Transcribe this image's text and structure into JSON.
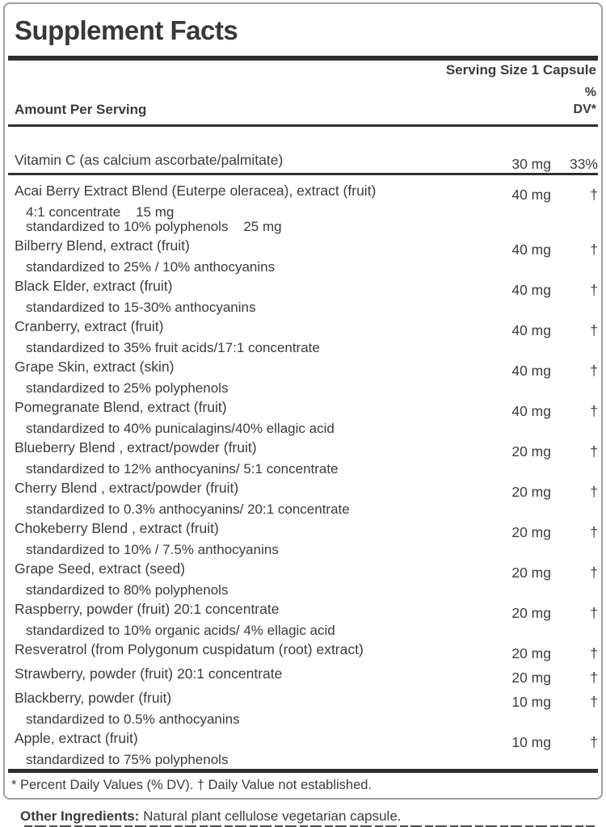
{
  "label": {
    "title": "Supplement Facts",
    "serving_size": "Serving Size 1 Capsule",
    "amount_header": "Amount Per Serving",
    "dv_header_line1": "%",
    "dv_header_line2": "DV*",
    "rows": [
      {
        "name": "Vitamin C (as calcium ascorbate/palmitate)",
        "amount": "30 mg",
        "dv": "33%",
        "subs": []
      },
      {
        "name": "Acai Berry Extract Blend (Euterpe oleracea), extract (fruit)",
        "amount": "40 mg",
        "dv": "†",
        "subs": [
          "4:1 concentrate    15 mg",
          "standardized to 10% polyphenols    25 mg"
        ]
      },
      {
        "name": "Bilberry Blend, extract (fruit)",
        "amount": "40 mg",
        "dv": "†",
        "subs": [
          "standardized to 25% / 10% anthocyanins"
        ]
      },
      {
        "name": "Black Elder, extract (fruit)",
        "amount": "40 mg",
        "dv": "†",
        "subs": [
          "standardized to 15-30% anthocyanins"
        ]
      },
      {
        "name": "Cranberry, extract (fruit)",
        "amount": "40 mg",
        "dv": "†",
        "subs": [
          "standardized to 35% fruit acids/17:1 concentrate"
        ]
      },
      {
        "name": "Grape Skin, extract (skin)",
        "amount": "40 mg",
        "dv": "†",
        "subs": [
          "standardized to 25% polyphenols"
        ]
      },
      {
        "name": "Pomegranate Blend, extract (fruit)",
        "amount": "40 mg",
        "dv": "†",
        "subs": [
          "standardized to 40% punicalagins/40% ellagic acid"
        ]
      },
      {
        "name": "Blueberry Blend , extract/powder (fruit)",
        "amount": "20 mg",
        "dv": "†",
        "subs": [
          "standardized to 12% anthocyanins/ 5:1 concentrate"
        ]
      },
      {
        "name": "Cherry Blend , extract/powder (fruit)",
        "amount": "20 mg",
        "dv": "†",
        "subs": [
          "standardized to 0.3% anthocyanins/ 20:1 concentrate"
        ]
      },
      {
        "name": "Chokeberry Blend , extract (fruit)",
        "amount": "20 mg",
        "dv": "†",
        "subs": [
          "standardized to 10% / 7.5% anthocyanins"
        ]
      },
      {
        "name": "Grape Seed, extract (seed)",
        "amount": "20 mg",
        "dv": "†",
        "subs": [
          "standardized to 80% polyphenols"
        ]
      },
      {
        "name": "Raspberry, powder (fruit) 20:1 concentrate",
        "amount": "20 mg",
        "dv": "†",
        "subs": [
          "standardized to 10% organic acids/ 4% ellagic acid"
        ]
      },
      {
        "name": "Resveratrol (from Polygonum cuspidatum (root) extract)",
        "amount": "20 mg",
        "dv": "†",
        "subs": []
      },
      {
        "name": "Strawberry, powder (fruit) 20:1 concentrate",
        "amount": "20 mg",
        "dv": "†",
        "subs": []
      },
      {
        "name": "Blackberry, powder (fruit)",
        "amount": "10 mg",
        "dv": "†",
        "subs": [
          "standardized to 0.5% anthocyanins"
        ]
      },
      {
        "name": "Apple, extract (fruit)",
        "amount": "10 mg",
        "dv": "†",
        "subs": [
          "standardized to 75% polyphenols"
        ]
      }
    ],
    "footnote": "* Percent Daily Values (% DV). † Daily Value not established.",
    "colors": {
      "rule": "#2e2e2e",
      "border": "#9e9e9e",
      "text": "#3c3c3c"
    }
  },
  "other_ingredients": {
    "label": "Other Ingredients:",
    "text": " Natural plant cellulose vegetarian capsule."
  }
}
